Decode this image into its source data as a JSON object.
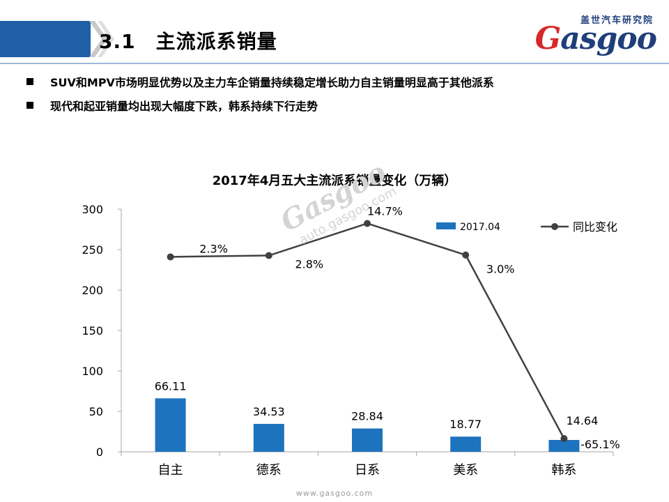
{
  "page": {
    "section_title": "3.1　主流派系销量",
    "logo_cn": "盖世汽车研究院",
    "logo_text": "Gasgoo",
    "bullets": [
      "SUV和MPV市场明显优势以及主力车企销量持续稳定增长助力自主销量明显高于其他派系",
      "现代和起亚销量均出现大幅度下跌，韩系持续下行走势"
    ],
    "footer": "www.gasgoo.com",
    "watermark_main": "Gasgoo",
    "watermark_sub": "auto.gasgoo.com"
  },
  "colors": {
    "bar": "#1e73be",
    "line": "#404040",
    "header": "#1f5fa8"
  },
  "chart_data": {
    "type": "bar",
    "title": "2017年4月五大主流派系销量变化（万辆）",
    "categories": [
      "自主",
      "德系",
      "日系",
      "美系",
      "韩系"
    ],
    "series": [
      {
        "name": "2017.04",
        "type": "bar",
        "values": [
          66.11,
          34.53,
          28.84,
          18.77,
          14.64
        ],
        "labels": [
          "66.11",
          "34.53",
          "28.84",
          "18.77",
          "14.64"
        ]
      },
      {
        "name": "同比变化",
        "type": "line",
        "values": [
          2.3,
          2.8,
          14.7,
          3.0,
          -65.1
        ],
        "labels": [
          "2.3%",
          "2.8%",
          "14.7%",
          "3.0%",
          "-65.1%"
        ]
      }
    ],
    "ylim": [
      0,
      300
    ],
    "yticks": [
      0,
      50,
      100,
      150,
      200,
      250,
      300
    ],
    "legend_position": "top-right",
    "grid": false
  }
}
